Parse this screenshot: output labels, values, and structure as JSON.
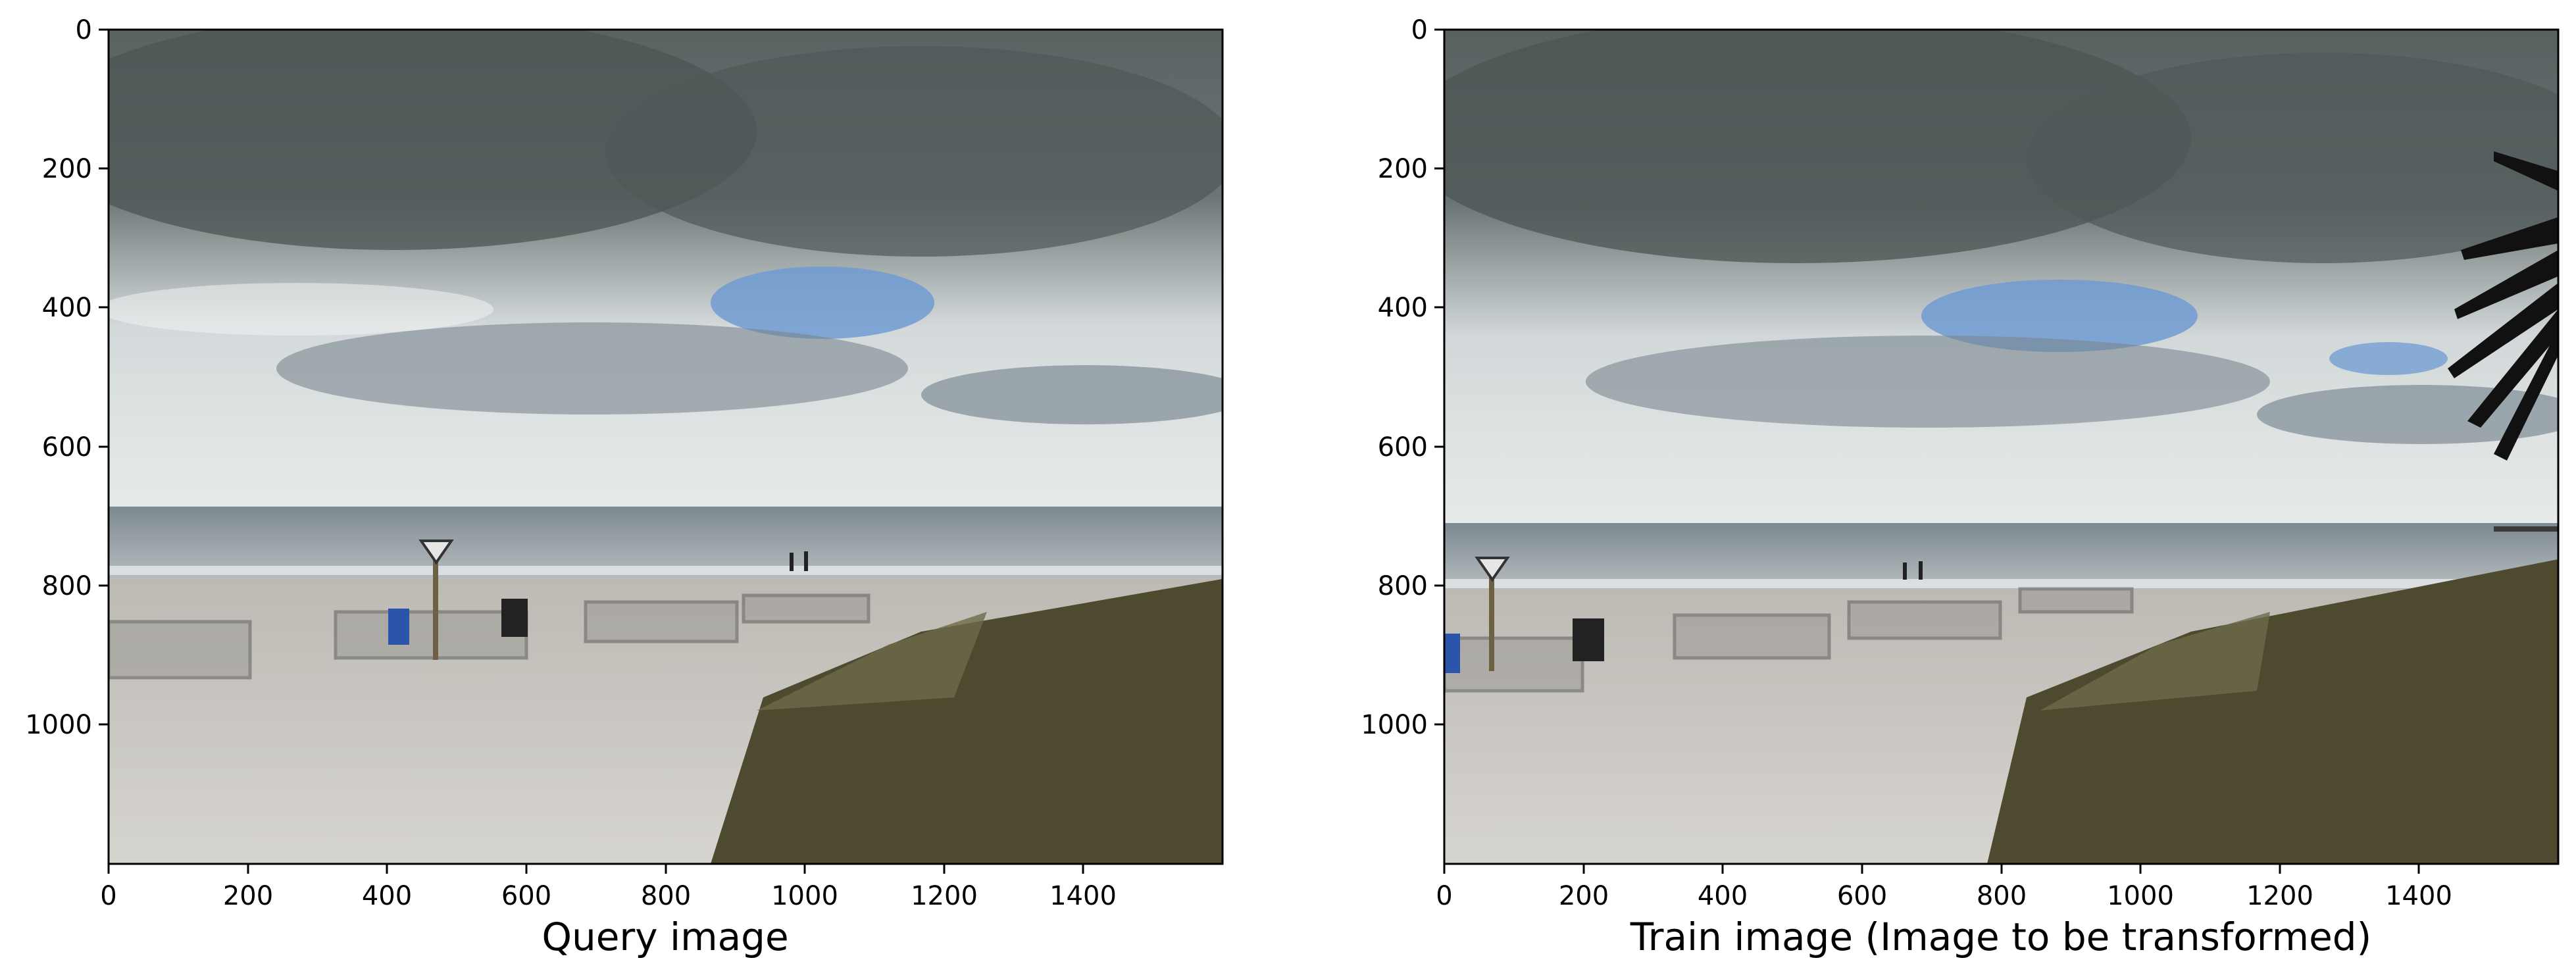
{
  "figure": {
    "panels": [
      {
        "xlabel": "Query image",
        "xticks": [
          "0",
          "200",
          "400",
          "600",
          "800",
          "1000",
          "1200",
          "1400"
        ],
        "yticks": [
          "0",
          "200",
          "400",
          "600",
          "800",
          "1000"
        ],
        "image": "beach with sand dunes, fences, sign post and overcast sky",
        "has_palm": false
      },
      {
        "xlabel": "Train image (Image to be transformed)",
        "xticks": [
          "0",
          "200",
          "400",
          "600",
          "800",
          "1000",
          "1200",
          "1400"
        ],
        "yticks": [
          "0",
          "200",
          "400",
          "600",
          "800",
          "1000"
        ],
        "image": "same beach from shifted viewpoint with palm fronds on right",
        "has_palm": true
      }
    ],
    "colors": {
      "sky_dark": "#5d6666",
      "sky_light": "#e8ecec",
      "blue_sky": "#6e9bd1",
      "ocean": "#8a9aa3",
      "sand": "#cfcdc8",
      "grass": "#4d4a30"
    }
  }
}
